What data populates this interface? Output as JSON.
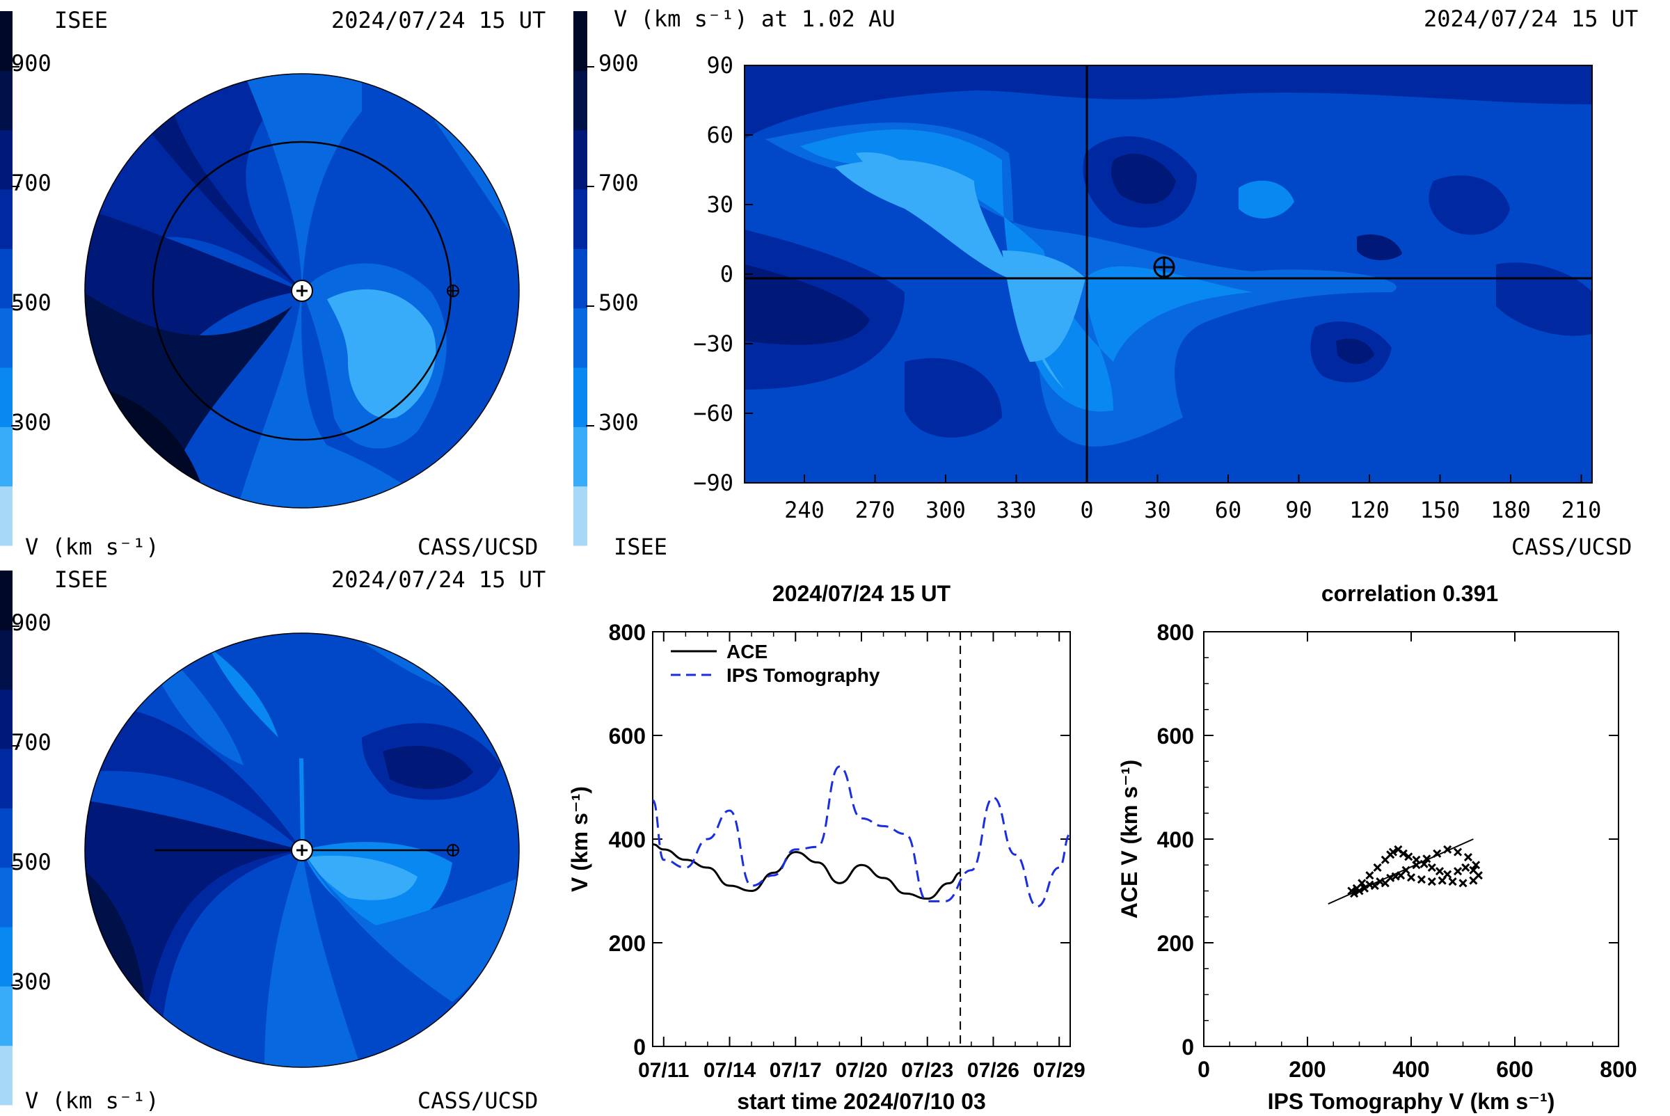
{
  "palette": [
    "#a8d8f8",
    "#38acf8",
    "#0888f0",
    "#0868e0",
    "#0048c8",
    "#0028a0",
    "#001878",
    "#001048",
    "#000828"
  ],
  "colorbar_ticks": [
    "900",
    "700",
    "500",
    "300"
  ],
  "panel_tl": {
    "org_left": "ISEE",
    "date": "2024/07/24 15 UT",
    "unit_label": "V (km s⁻¹)",
    "org_right": "CASS/UCSD"
  },
  "panel_bl": {
    "org_left": "ISEE",
    "date": "2024/07/24 15 UT",
    "unit_label": "V (km s⁻¹)",
    "org_right": "CASS/UCSD"
  },
  "panel_map": {
    "title": "V (km s⁻¹) at 1.02 AU",
    "date": "2024/07/24 15 UT",
    "org_left": "ISEE",
    "org_right": "CASS/UCSD",
    "y_ticks": [
      "90",
      "60",
      "30",
      "0",
      "−30",
      "−60",
      "−90"
    ],
    "x_ticks": [
      "240",
      "270",
      "300",
      "330",
      "0",
      "30",
      "60",
      "90",
      "120",
      "150",
      "180",
      "210"
    ]
  },
  "timeseries": {
    "title": "2024/07/24 15 UT",
    "ylabel": "V (km s⁻¹)",
    "xlabel": "start time 2024/07/10 03",
    "legend_ace": "ACE",
    "legend_ips": "IPS Tomography"
  },
  "scatter": {
    "title": "correlation 0.391",
    "xlabel": "IPS Tomography V (km s⁻¹)",
    "ylabel": "ACE V (km s⁻¹)"
  },
  "chart_data": [
    {
      "type": "heatmap",
      "title": "V (km s⁻¹) at 1.02 AU",
      "xlabel": "",
      "ylabel": "",
      "x_ticks": [
        240,
        270,
        300,
        330,
        0,
        30,
        60,
        90,
        120,
        150,
        180,
        210
      ],
      "ylim": [
        -90,
        90
      ],
      "colorbar_ticks": [
        300,
        500,
        700,
        900
      ],
      "earth_marker": {
        "lon": 32,
        "lat": 5
      }
    },
    {
      "type": "line",
      "title": "2024/07/24 15 UT",
      "xlabel": "start time 2024/07/10 03",
      "ylabel": "V (km s⁻¹)",
      "ylim": [
        0,
        800
      ],
      "xlim": [
        0.5,
        19.5
      ],
      "x_tick_labels": [
        "07/11",
        "07/14",
        "07/17",
        "07/20",
        "07/23",
        "07/26",
        "07/29"
      ],
      "x_tick_days": [
        1,
        4,
        7,
        10,
        13,
        16,
        19
      ],
      "current_time_day": 14.5,
      "series": [
        {
          "name": "ACE",
          "x": [
            0.5,
            1,
            2,
            3,
            4,
            5,
            6,
            7,
            8,
            9,
            10,
            11,
            12,
            13,
            14,
            14.5
          ],
          "values": [
            390,
            380,
            360,
            345,
            310,
            300,
            335,
            375,
            355,
            315,
            350,
            325,
            295,
            285,
            315,
            335
          ]
        },
        {
          "name": "IPS Tomography",
          "x": [
            0.5,
            1,
            2,
            3,
            4,
            5,
            6,
            7,
            8,
            9,
            10,
            11,
            12,
            13,
            13.8,
            15,
            16,
            17,
            18,
            19,
            19.5
          ],
          "values": [
            475,
            360,
            345,
            400,
            455,
            310,
            330,
            380,
            385,
            540,
            440,
            425,
            410,
            280,
            280,
            340,
            480,
            370,
            270,
            345,
            410
          ]
        }
      ]
    },
    {
      "type": "scatter",
      "title": "correlation 0.391",
      "xlabel": "IPS Tomography V (km s⁻¹)",
      "ylabel": "ACE V (km s⁻¹)",
      "xlim": [
        0,
        800
      ],
      "ylim": [
        0,
        800
      ],
      "x_ticks": [
        0,
        200,
        400,
        600,
        800
      ],
      "y_ticks": [
        0,
        200,
        400,
        600,
        800
      ],
      "points": [
        [
          285,
          300
        ],
        [
          295,
          305
        ],
        [
          305,
          315
        ],
        [
          320,
          330
        ],
        [
          335,
          345
        ],
        [
          350,
          360
        ],
        [
          360,
          370
        ],
        [
          365,
          375
        ],
        [
          375,
          380
        ],
        [
          385,
          372
        ],
        [
          395,
          366
        ],
        [
          410,
          360
        ],
        [
          425,
          352
        ],
        [
          440,
          345
        ],
        [
          455,
          338
        ],
        [
          470,
          332
        ],
        [
          490,
          338
        ],
        [
          505,
          345
        ],
        [
          520,
          340
        ],
        [
          530,
          330
        ],
        [
          520,
          320
        ],
        [
          500,
          315
        ],
        [
          480,
          318
        ],
        [
          460,
          320
        ],
        [
          440,
          318
        ],
        [
          420,
          322
        ],
        [
          400,
          326
        ],
        [
          380,
          330
        ],
        [
          360,
          325
        ],
        [
          340,
          318
        ],
        [
          320,
          312
        ],
        [
          300,
          300
        ],
        [
          290,
          295
        ],
        [
          310,
          305
        ],
        [
          330,
          310
        ],
        [
          350,
          315
        ],
        [
          370,
          328
        ],
        [
          390,
          340
        ],
        [
          410,
          350
        ],
        [
          430,
          362
        ],
        [
          450,
          372
        ],
        [
          470,
          380
        ],
        [
          490,
          375
        ],
        [
          510,
          365
        ],
        [
          525,
          350
        ]
      ],
      "fit_line": [
        [
          240,
          275
        ],
        [
          520,
          400
        ]
      ]
    }
  ]
}
